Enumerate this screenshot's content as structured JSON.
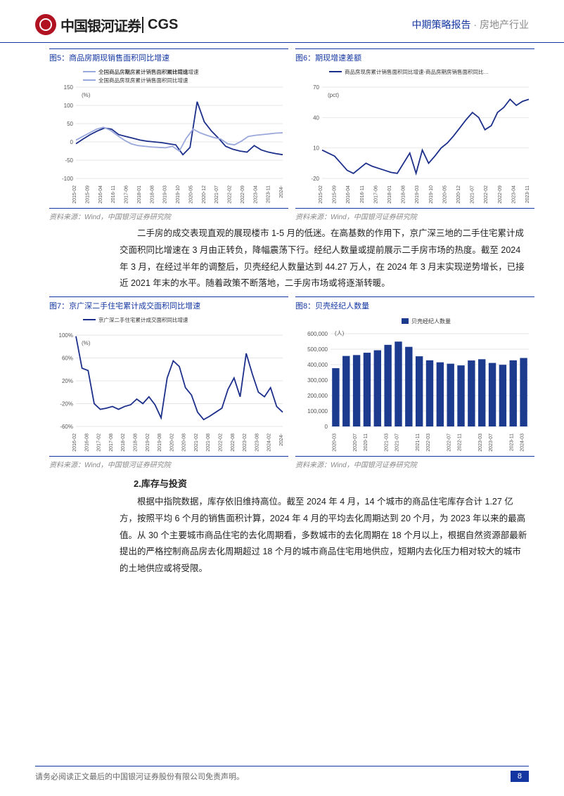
{
  "header": {
    "logo_cn": "中国银河证券",
    "logo_en": "CGS",
    "right_blue": "中期策略报告",
    "right_dot": " · ",
    "right_gray": "房地产行业"
  },
  "chart5": {
    "title": "图5：商品房期现销售面积同比增速",
    "source": "资料来源：Wind，中国银河证券研究院",
    "type": "line",
    "unit": "(%)",
    "x_labels": [
      "2015-02",
      "2015-09",
      "2016-04",
      "2016-11",
      "2017-06",
      "2018-01",
      "2018-08",
      "2019-03",
      "2019-10",
      "2020-05",
      "2020-12",
      "2021-07",
      "2022-02",
      "2022-09",
      "2023-04",
      "2023-11",
      "2024-"
    ],
    "ylim": [
      -100,
      150
    ],
    "ytick_step": 50,
    "series1": {
      "name": "全国商品房期房累计销售面积累计同比增速",
      "color": "#1c2f8a",
      "values": [
        -5,
        8,
        20,
        30,
        38,
        35,
        20,
        15,
        10,
        5,
        2,
        0,
        -2,
        -5,
        -8,
        -35,
        -15,
        110,
        55,
        30,
        10,
        -12,
        -20,
        -25,
        -28,
        -10,
        -22,
        -28,
        -32,
        -35
      ]
    },
    "series2": {
      "name": "全国商品房现房累计销售面积同比增速",
      "color": "#9aa8db",
      "values": [
        5,
        15,
        25,
        35,
        40,
        32,
        18,
        5,
        -5,
        -10,
        -12,
        -14,
        -15,
        -16,
        -12,
        -25,
        10,
        35,
        25,
        18,
        12,
        8,
        -5,
        -8,
        2,
        15,
        18,
        20,
        22,
        24,
        25
      ]
    },
    "grid_color": "#dddddd",
    "background": "#ffffff"
  },
  "chart6": {
    "title": "图6：期现增速差额",
    "source": "资料来源：Wind，中国银河证券研究院",
    "type": "line",
    "unit": "(pct)",
    "x_labels": [
      "2015-02",
      "2015-09",
      "2016-04",
      "2016-11",
      "2017-06",
      "2018-01",
      "2018-08",
      "2019-03",
      "2019-10",
      "2020-05",
      "2020-12",
      "2021-07",
      "2022-02",
      "2022-09",
      "2023-04",
      "2023-11"
    ],
    "ylim": [
      -20,
      70
    ],
    "ytick_step": 30,
    "series1": {
      "name": "商品房现房累计销售面积同比增速-商品房期房销售面积同比…",
      "color": "#1c2f8a",
      "values": [
        8,
        5,
        2,
        -5,
        -12,
        -15,
        -10,
        -5,
        -8,
        -10,
        -12,
        -14,
        -15,
        -5,
        5,
        -15,
        8,
        -5,
        2,
        10,
        15,
        22,
        30,
        38,
        45,
        40,
        28,
        32,
        45,
        50,
        58,
        52,
        56,
        58
      ]
    },
    "grid_color": "#dddddd",
    "background": "#ffffff"
  },
  "paragraph1": "二手房的成交表现直观的展现楼市 1-5 月的低迷。在高基数的作用下，京广深三地的二手住宅累计成交面积同比增速在 3 月由正转负，降幅震荡下行。经纪人数量或提前展示二手房市场的热度。截至 2024 年 3 月，在经过半年的调整后，贝壳经纪人数量达到 44.27 万人，在 2024 年 3 月末实现逆势增长，已接近 2021 年末的水平。随着政策不断落地，二手房市场或将逐渐转暖。",
  "chart7": {
    "title": "图7：京广深二手住宅累计成交面积同比增速",
    "source": "资料来源：Wind，中国银河证券研究院",
    "type": "line",
    "unit": "(%)",
    "x_labels": [
      "2016-02",
      "2016-08",
      "2017-02",
      "2017-08",
      "2018-02",
      "2018-08",
      "2019-02",
      "2019-08",
      "2020-02",
      "2020-08",
      "2021-02",
      "2021-08",
      "2022-02",
      "2022-08",
      "2023-02",
      "2023-08",
      "2024-02",
      "2024-"
    ],
    "ylim": [
      -60,
      100
    ],
    "ytick_step": 40,
    "series1": {
      "name": "京广深二手住宅累计成交面积同比增速",
      "color": "#1c2f8a",
      "values": [
        98,
        42,
        38,
        -20,
        -30,
        -28,
        -25,
        -30,
        -25,
        -22,
        -12,
        -20,
        -8,
        -22,
        -45,
        25,
        55,
        45,
        8,
        -5,
        -35,
        -48,
        -42,
        -35,
        -28,
        5,
        25,
        -8,
        68,
        32,
        0,
        -8,
        8,
        -25,
        -35
      ]
    },
    "grid_color": "#dddddd",
    "background": "#ffffff"
  },
  "chart8": {
    "title": "图8：贝壳经纪人数量",
    "source": "资料来源：Wind，中国银河证券研究院",
    "type": "bar",
    "unit": "(人)",
    "x_labels": [
      "2020-03",
      "2020-07",
      "2020-11",
      "2021-03",
      "2021-07",
      "2021-11",
      "2022-03",
      "2022-07",
      "2022-11",
      "2023-03",
      "2023-07",
      "2023-11",
      "2024-03"
    ],
    "ylim": [
      0,
      600000
    ],
    "ytick_step": 100000,
    "series1": {
      "name": "贝壳经纪人数量",
      "color": "#1c3b8f",
      "values": [
        377000,
        456000,
        462000,
        477000,
        493000,
        528000,
        549000,
        515000,
        454000,
        428000,
        415000,
        406000,
        395000,
        427000,
        435000,
        411000,
        399000,
        428000,
        443000
      ]
    },
    "grid_color": "#dddddd",
    "background": "#ffffff",
    "bar_width": 0.7
  },
  "section2_title": "2.库存与投资",
  "paragraph2": "根据中指院数据，库存依旧维持高位。截至 2024 年 4 月，14 个城市的商品住宅库存合计 1.27 亿方，按照平均 6 个月的销售面积计算，2024 年 4 月的平均去化周期达到 20 个月，为 2023 年以来的最高值。从 30 个主要城市商品住宅的去化周期看，多数城市的去化周期在 18 个月以上，根据自然资源部最新提出的严格控制商品房去化周期超过 18 个月的城市商品住宅用地供应，短期内去化压力相对较大的城市的土地供应或将受限。",
  "footer": {
    "disclaimer": "请务必阅读正文最后的中国银河证券股份有限公司免责声明。",
    "page": "8"
  }
}
